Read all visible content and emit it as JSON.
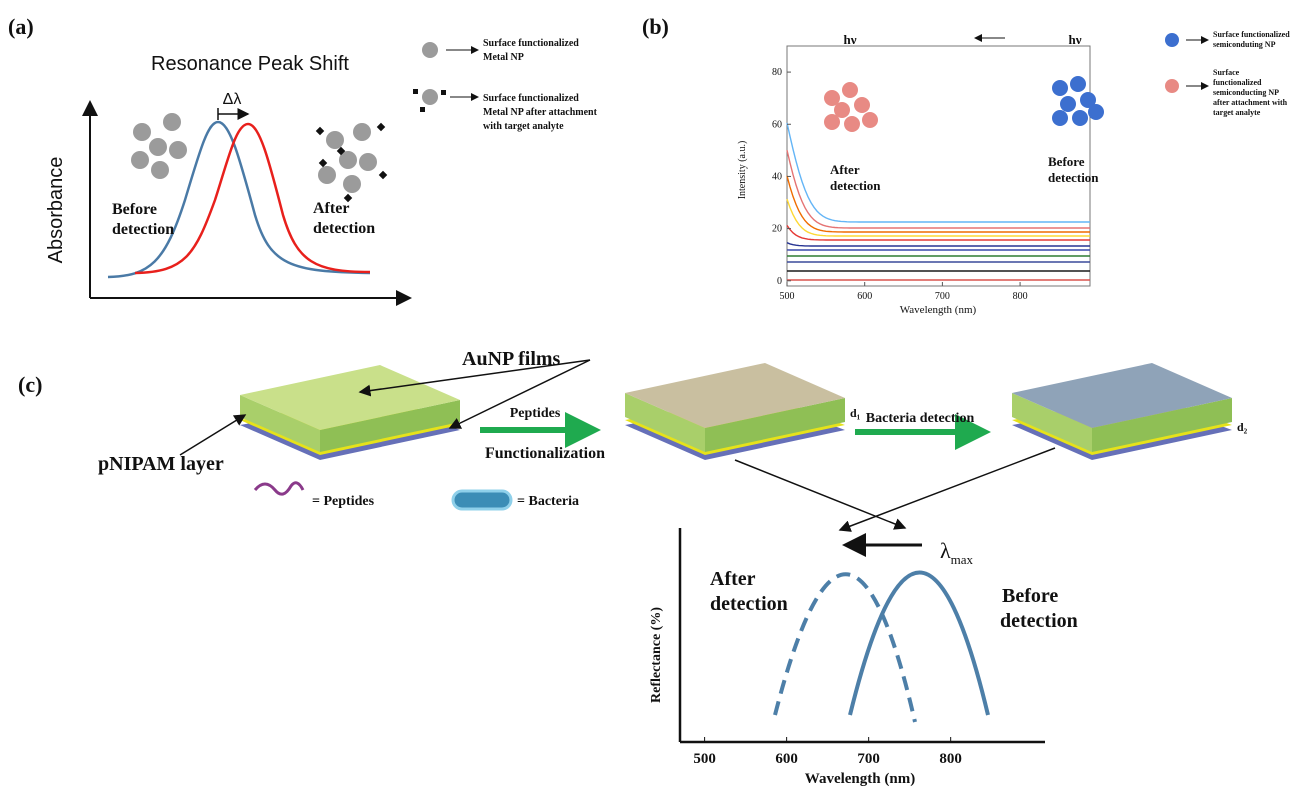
{
  "panel_a": {
    "label": "(a)",
    "title": "Resonance Peak Shift",
    "shift": "Δλ",
    "y_label": "Absorbance",
    "before": [
      "Before",
      "detection"
    ],
    "after": [
      "After",
      "detection"
    ],
    "legend": [
      [
        "Surface functionalized",
        "Metal NP"
      ],
      [
        "Surface functionalized",
        "Metal NP after attachment",
        "with target analyte"
      ]
    ]
  },
  "panel_b": {
    "label": "(b)",
    "hv_after": "hν",
    "hv_before": "hν",
    "y_label": "Intensity (a.u.)",
    "x_label": "Wavelength (nm)",
    "xlim": [
      500,
      890
    ],
    "xticks": [
      500,
      600,
      700,
      800
    ],
    "ylim": [
      -2,
      90
    ],
    "yticks": [
      0,
      20,
      40,
      60,
      80
    ],
    "after": [
      "After",
      "detection"
    ],
    "before": [
      "Before",
      "detection"
    ],
    "legend": [
      [
        "Surface functionalized",
        "semiconduting NP"
      ],
      [
        "Surface",
        "functionalized",
        "semiconducting NP",
        "after attachment with",
        "target analyte"
      ]
    ]
  },
  "panel_c": {
    "label": "(c)",
    "films": "AuNP films",
    "layer": "pNIPAM layer",
    "step1": "Peptides",
    "step1b": "Functionalization",
    "step2": "Bacteria detection",
    "d1": "d₁",
    "d2": "d₂",
    "peptides": "= Peptides",
    "bacteria": "= Bacteria",
    "lambda": "λ",
    "lambda_sub": "max",
    "after": [
      "After",
      "detection"
    ],
    "before": [
      "Before",
      "detection"
    ],
    "y_label": "Reflectance (%)",
    "x_label": "Wavelength (nm)",
    "xlim": [
      470,
      915
    ],
    "xticks": [
      500,
      600,
      700,
      800
    ]
  }
}
